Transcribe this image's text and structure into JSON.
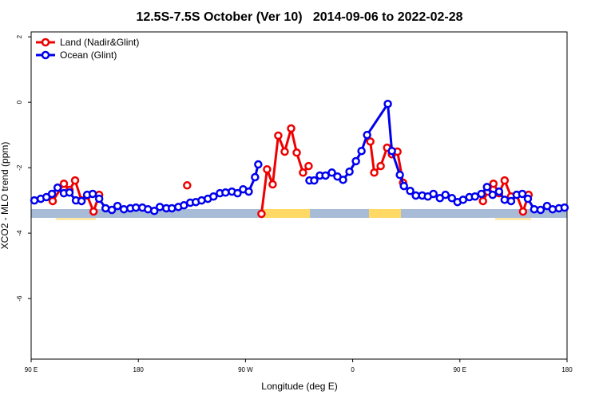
{
  "chart_data": {
    "type": "line",
    "title": "12.5S-7.5S October (Ver 10)   2014-09-06 to 2022-02-28",
    "x_label": "Longitude (deg E)",
    "y_label": "XCO2 - MLO trend (ppm)",
    "xlim": [
      90,
      540
    ],
    "xticks": [
      {
        "value": 90,
        "label": "90 E"
      },
      180,
      {
        "value": 270,
        "label": "90 W"
      },
      {
        "value": 360,
        "label": "0"
      },
      {
        "value": 450,
        "label": "90 E"
      },
      {
        "value": 540,
        "label": "180"
      }
    ],
    "ylim": [
      -7.85,
      2.15
    ],
    "yticks": [
      2,
      0,
      -2,
      -4,
      -6
    ],
    "legend": "top-left",
    "series": [
      {
        "name": "Land (Nadir&Glint)",
        "color": "#ee0000",
        "x": [
          108.1,
          117.5,
          122.2,
          126.9,
          132.3,
          137.0,
          142.4,
          147.1,
          null,
          221.0,
          null,
          283.4,
          288.1,
          292.8,
          297.5,
          302.9,
          308.3,
          313.0,
          318.3,
          323.0,
          null,
          374.8,
          378.1,
          383.5,
          388.9,
          392.9,
          397.6,
          402.3,
          null,
          469.4,
          473.5,
          478.2,
          482.9,
          487.6,
          493.0,
          497.7,
          503.0,
          507.7
        ],
        "values": [
          -3.02,
          -2.49,
          -2.68,
          -2.39,
          -3.0,
          -2.85,
          -3.34,
          -2.83,
          null,
          -2.54,
          null,
          -3.41,
          -2.05,
          -2.51,
          -1.02,
          -1.51,
          -0.8,
          -1.54,
          -2.15,
          -1.95,
          null,
          -1.2,
          -2.15,
          -1.95,
          -1.39,
          -1.59,
          -1.51,
          -2.46,
          null,
          -3.02,
          -2.73,
          -2.49,
          -2.78,
          -2.39,
          -2.88,
          -2.83,
          -3.34,
          -2.83
        ]
      },
      {
        "name": "Ocean (Glint)",
        "color": "#0000ee",
        "x": [
          92.7,
          98.1,
          102.8,
          107.5,
          112.2,
          117.5,
          122.2,
          127.6,
          132.3,
          137.0,
          141.7,
          147.1,
          152.5,
          157.8,
          162.5,
          167.9,
          173.3,
          178.0,
          183.4,
          188.1,
          193.4,
          198.1,
          203.5,
          208.2,
          213.6,
          218.3,
          223.6,
          228.3,
          233.1,
          238.4,
          243.1,
          248.5,
          253.2,
          258.6,
          263.3,
          268.0,
          272.7,
          278.0,
          280.7,
          null,
          323.7,
          327.7,
          332.4,
          337.2,
          342.5,
          347.2,
          351.9,
          357.3,
          362.7,
          367.4,
          372.1,
          389.5,
          392.9,
          399.6,
          403.0,
          408.3,
          413.0,
          418.4,
          423.1,
          427.8,
          433.2,
          437.9,
          443.3,
          448.0,
          452.7,
          458.0,
          462.7,
          468.1,
          472.8,
          477.5,
          482.9,
          487.6,
          493.0,
          497.7,
          502.4,
          507.1,
          512.4,
          517.8,
          523.2,
          527.9,
          533.2,
          537.9
        ],
        "values": [
          -3.0,
          -2.95,
          -2.9,
          -2.8,
          -2.61,
          -2.78,
          -2.76,
          -3.0,
          -3.02,
          -2.83,
          -2.8,
          -2.95,
          -3.24,
          -3.29,
          -3.17,
          -3.27,
          -3.24,
          -3.22,
          -3.22,
          -3.27,
          -3.32,
          -3.2,
          -3.24,
          -3.24,
          -3.2,
          -3.15,
          -3.07,
          -3.05,
          -3.0,
          -2.95,
          -2.88,
          -2.78,
          -2.76,
          -2.73,
          -2.78,
          -2.66,
          -2.73,
          -2.29,
          -1.9,
          null,
          -2.39,
          -2.39,
          -2.24,
          -2.24,
          -2.15,
          -2.27,
          -2.37,
          -2.12,
          -1.8,
          -1.49,
          -1.0,
          -0.05,
          -1.49,
          -2.22,
          -2.56,
          -2.71,
          -2.85,
          -2.85,
          -2.88,
          -2.8,
          -2.93,
          -2.83,
          -2.93,
          -3.05,
          -2.98,
          -2.9,
          -2.88,
          -2.8,
          -2.59,
          -2.83,
          -2.73,
          -2.98,
          -3.02,
          -2.83,
          -2.8,
          -2.95,
          -3.27,
          -3.29,
          -3.17,
          -3.27,
          -3.24,
          -3.22
        ]
      }
    ]
  }
}
